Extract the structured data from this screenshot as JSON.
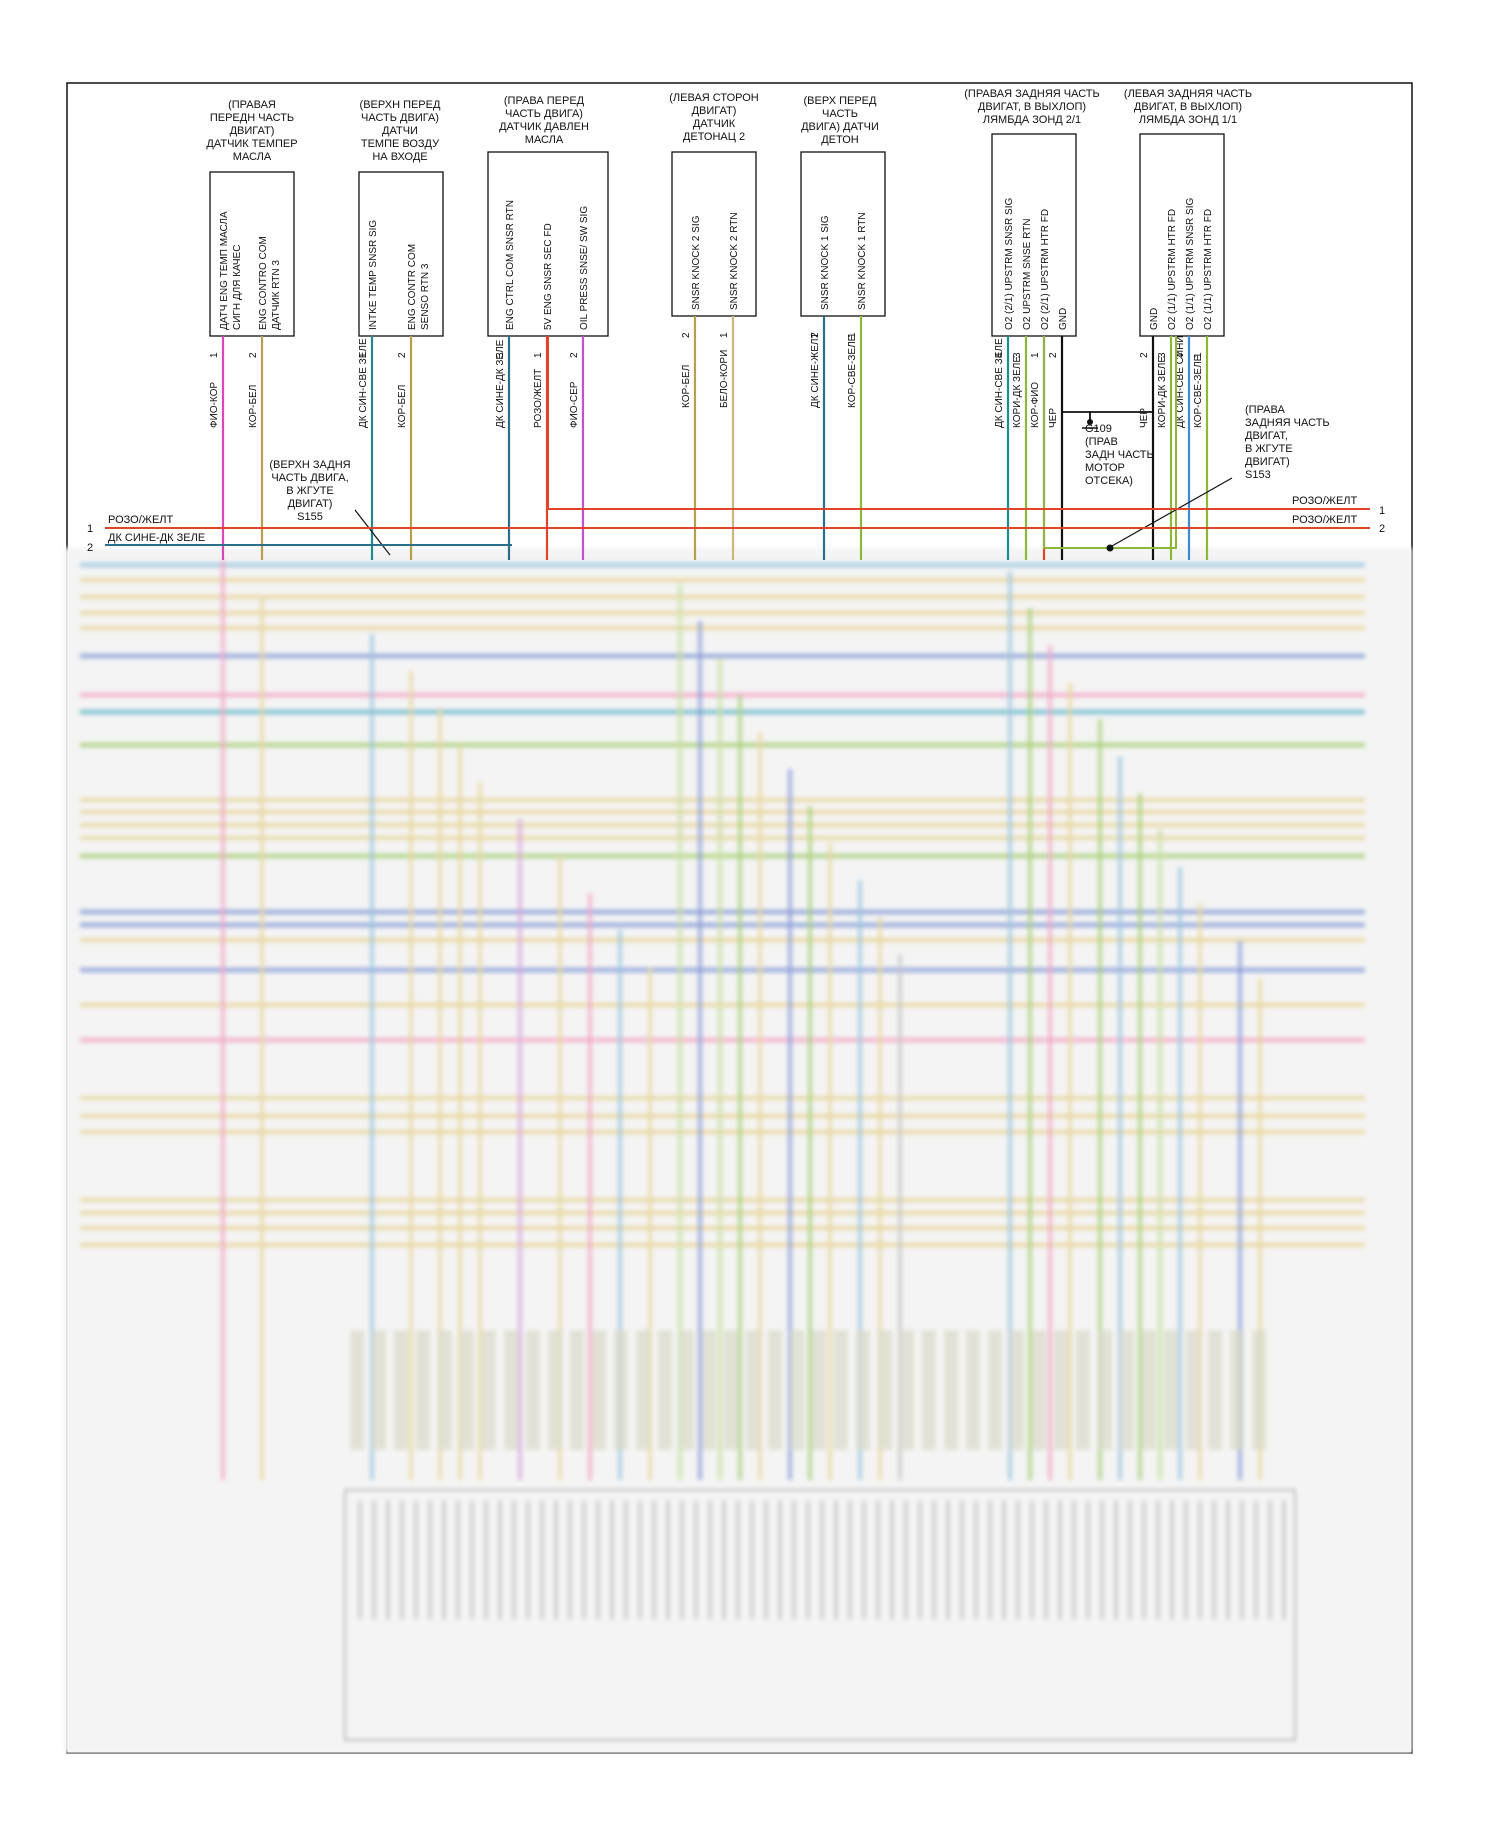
{
  "bus_labels": {
    "line1_left": "РОЗО/ЖЕЛТ",
    "line2_left": "ДК СИНЕ-ДК ЗЕЛЕ",
    "line1_right": "РОЗО/ЖЕЛТ",
    "line2_right": "РОЗО/ЖЕЛТ",
    "num1_left": "1",
    "num2_left": "2",
    "num1_right": "1",
    "num2_right": "2"
  },
  "components": [
    {
      "title": [
        "(ПРАВАЯ",
        "ПЕРЕДН ЧАСТЬ",
        "ДВИГАТ)",
        "ДАТЧИК ТЕМПЕР",
        "МАСЛА"
      ],
      "pins": [
        {
          "label": "ДАТЧ ENG ТЕМП МАСЛА СИГН ДЛЯ КАЧЕС",
          "num": "1",
          "wire": "ФИО-КОР",
          "color": "#d946b8"
        },
        {
          "label": "ENG CONTRO COM ДАТЧИК RTN 3",
          "num": "2",
          "wire": "КОР-БЕЛ",
          "color": "#b8a04a"
        }
      ]
    },
    {
      "title": [
        "(ВЕРХН ПЕРЕД",
        "ЧАСТЬ ДВИГА)",
        "ДАТЧИ",
        "ТЕМПЕ ВОЗДУ",
        "НА ВХОДЕ"
      ],
      "pins": [
        {
          "label": "INTKE TEMP SNSR SIG",
          "num": "1",
          "wire": "ДК СИН-СВЕ ЗЕЛЕ",
          "color": "#1f8c8c"
        },
        {
          "label": "ENG CONTR COM SENSO RTN 3",
          "num": "2",
          "wire": "КОР-БЕЛ",
          "color": "#b8a04a"
        }
      ]
    },
    {
      "title": [
        "(ПРАВА ПЕРЕД",
        "ЧАСТЬ ДВИГА)",
        "ДАТЧИК ДАВЛЕН",
        "МАСЛА"
      ],
      "pins": [
        {
          "label": "ENG CTRL COM SNSR RTN",
          "num": "3",
          "wire": "ДК СИНЕ-ДК ЗЕЛЕ",
          "color": "#2a6e8a"
        },
        {
          "label": "5V ENG SNSR SEC FD",
          "num": "1",
          "wire": "РОЗО/ЖЕЛТ",
          "color": "#e0442a"
        },
        {
          "label": "OIL PRESS SNSE/ SW SIG",
          "num": "2",
          "wire": "ФИО-СЕР",
          "color": "#c44fd0"
        }
      ]
    },
    {
      "title": [
        "(ЛЕВАЯ СТОРОН",
        "ДВИГАТ)",
        "ДАТЧИК",
        "ДЕТОНАЦ 2"
      ],
      "pins": [
        {
          "label": "SNSR KNOCK 2 SIG",
          "num": "2",
          "wire": "КОР-БЕЛ",
          "color": "#b8a04a"
        },
        {
          "label": "SNSR KNOCK 2 RTN",
          "num": "1",
          "wire": "БЕЛО-КОРИ",
          "color": "#c8b87a"
        }
      ]
    },
    {
      "title": [
        "(ВЕРХ ПЕРЕД",
        "ЧАСТЬ",
        "ДВИГА) ДАТЧИ",
        "ДЕТОН"
      ],
      "pins": [
        {
          "label": "SNSR KNOCK 1 SIG",
          "num": "2",
          "wire": "ДК СИНЕ-ЖЕЛТ",
          "color": "#2a6e8a"
        },
        {
          "label": "SNSR KNOCK 1 RTN",
          "num": "1",
          "wire": "КОР-СВЕ-ЗЕЛЕ",
          "color": "#8cb83a"
        }
      ]
    },
    {
      "title": [
        "(ПРАВАЯ ЗАДНЯЯ ЧАСТЬ",
        "ДВИГАТ, В ВЫХЛОП)",
        "ЛЯМБДА ЗОНД 2/1"
      ],
      "pins": [
        {
          "label": "O2 (2/1) UPSTRM SNSR SIG",
          "num": "4",
          "wire": "ДК СИН-СВЕ ЗЕЛЕ",
          "color": "#1f8c8c"
        },
        {
          "label": "O2 UPSTRM SNSE RTN",
          "num": "3",
          "wire": "КОРИ-ДК ЗЕЛЕ",
          "color": "#8cb83a"
        },
        {
          "label": "O2 (2/1) UPSTRM HTR FD",
          "num": "1",
          "wire": "КОР-ФИО",
          "color": "#e0442a"
        },
        {
          "label": "GND",
          "num": "2",
          "wire": "ЧЕР",
          "color": "#111111"
        }
      ]
    },
    {
      "title": [
        "(ЛЕВАЯ ЗАДНЯЯ ЧАСТЬ",
        "ДВИГАТ, В ВЫХЛОП)",
        "ЛЯМБДА ЗОНД 1/1"
      ],
      "pins": [
        {
          "label": "GND",
          "num": "2",
          "wire": "ЧЕР",
          "color": "#111111"
        },
        {
          "label": "O2 (1/1) UPSTRM HTR FD",
          "num": "3",
          "wire": "КОРИ-ДК ЗЕЛЕ",
          "color": "#8cb83a"
        },
        {
          "label": "O2 (1/1) UPSTRM SNSR SIG",
          "num": "4",
          "wire": "ДК СИН-СВЕ СИНИ",
          "color": "#3a8ad8"
        },
        {
          "label": "O2 (1/1) UPSTRM HTR FD",
          "num": "1",
          "wire": "КОР-СВЕ-ЗЕЛЕ",
          "color": "#8cb83a"
        }
      ]
    }
  ],
  "splices": {
    "s155": [
      "(ВЕРХН ЗАДНЯ",
      "ЧАСТЬ ДВИГА,",
      "В ЖГУТЕ",
      "ДВИГАТ)",
      "S155"
    ],
    "s153": [
      "(ПРАВА",
      "ЗАДНЯЯ ЧАСТЬ",
      "ДВИГАТ,",
      "В ЖГУТЕ",
      "ДВИГАТ)",
      "S153"
    ],
    "g109": [
      "G109",
      "(ПРАВ",
      "ЗАДН ЧАСТЬ",
      "МОТОР",
      "ОТСЕКА)"
    ]
  },
  "colors": {
    "frame": "#111111",
    "bus_red": "#e0442a",
    "bus_teal": "#2a6e8a",
    "blurred_bg": "#f4f4f4"
  }
}
